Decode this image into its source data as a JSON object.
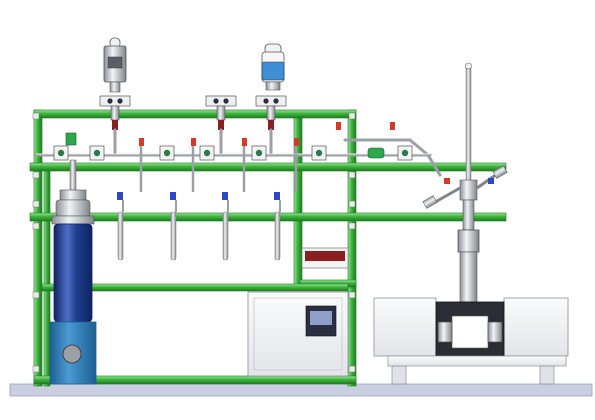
{
  "colors": {
    "frame_green": "#3cb43c",
    "frame_green_dark": "#1f7a1f",
    "frame_green_light": "#8fe08f",
    "tube_steel": "#c8ccd0",
    "tube_steel_dark": "#7f858a",
    "cylinder_blue": "#1f3d8c",
    "cylinder_blue_light": "#4f6fc8",
    "base_blue": "#2a7bb6",
    "valve_red": "#d23a2a",
    "valve_blue": "#2a48c8",
    "valve_green": "#2aa84a",
    "display_dark": "#2a2f44",
    "display_screen": "#8fa0c8",
    "heater_red": "#8b1f1f",
    "floor": "#c9cfe0",
    "cabinet_white": "#f3f4f6",
    "cabinet_line": "#8a8f98",
    "sample_bottle_blue": "#3f8fd8"
  },
  "components": {
    "pressure_regulator_icon": "pressure-regulator",
    "sample_bottle_icon": "sample-bottle",
    "gas_cylinder_icon": "gas-cylinder",
    "controller_icon": "temperature-controller",
    "furnace_icon": "tube-furnace",
    "reactor_icon": "fixed-bed-reactor",
    "heater_icon": "heater-panel"
  }
}
